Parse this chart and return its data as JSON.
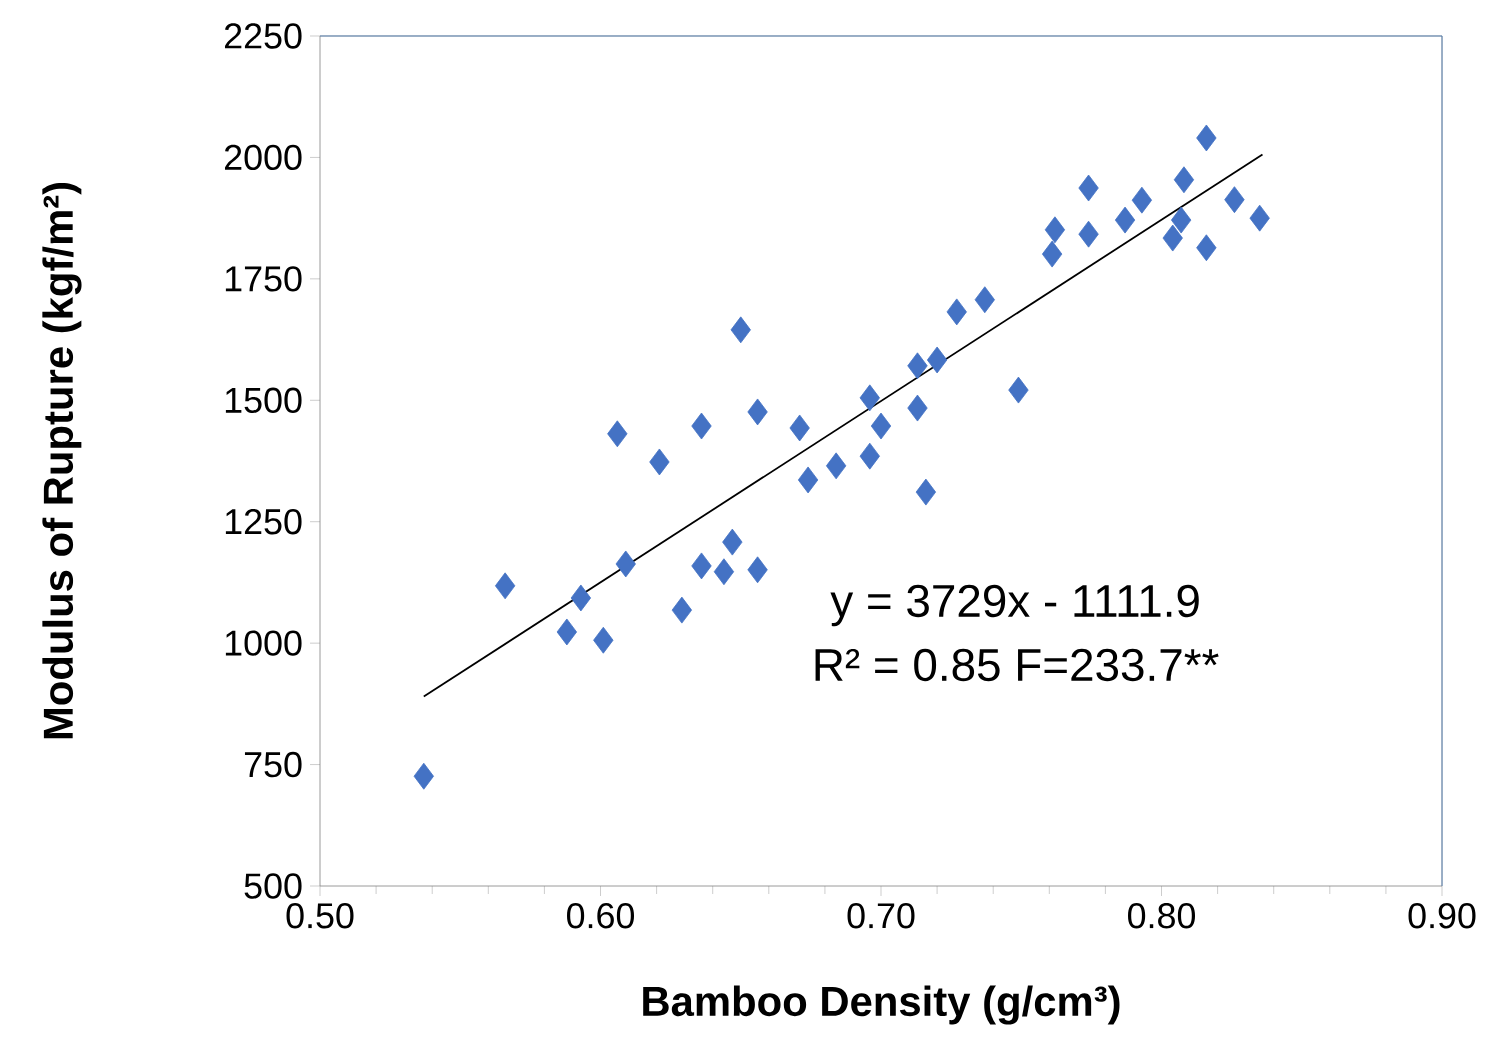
{
  "chart_data": {
    "type": "scatter",
    "xlabel": "Bamboo Density (g/cm³)",
    "ylabel": "Modulus of Rupture (kgf/m²)",
    "xlim": [
      0.5,
      0.9
    ],
    "ylim": [
      500,
      2250
    ],
    "xticks": [
      {
        "value": 0.5,
        "label": "0.50"
      },
      {
        "value": 0.6,
        "label": "0.60"
      },
      {
        "value": 0.7,
        "label": "0.70"
      },
      {
        "value": 0.8,
        "label": "0.80"
      },
      {
        "value": 0.9,
        "label": "0.90"
      }
    ],
    "yticks": [
      500,
      750,
      1000,
      1250,
      1500,
      1750,
      2000,
      2250
    ],
    "marker": "diamond",
    "grid": false,
    "annotations": [
      "y = 3729x - 1111.9",
      "R² = 0.85 F=233.7**"
    ],
    "series": [
      {
        "color": "#4472c4",
        "x": [
          0.537,
          0.566,
          0.588,
          0.593,
          0.601,
          0.609,
          0.606,
          0.621,
          0.629,
          0.636,
          0.644,
          0.647,
          0.656,
          0.636,
          0.65,
          0.656,
          0.671,
          0.674,
          0.684,
          0.696,
          0.7,
          0.696,
          0.713,
          0.72,
          0.713,
          0.716,
          0.727,
          0.737,
          0.749,
          0.761,
          0.762,
          0.774,
          0.774,
          0.787,
          0.793,
          0.804,
          0.807,
          0.808,
          0.816,
          0.816,
          0.826,
          0.835
        ],
        "values": [
          726,
          1118,
          1023,
          1093,
          1006,
          1163,
          1431,
          1373,
          1068,
          1159,
          1147,
          1208,
          1151,
          1447,
          1645,
          1476,
          1443,
          1336,
          1365,
          1505,
          1447,
          1385,
          1571,
          1583,
          1484,
          1311,
          1682,
          1707,
          1521,
          1801,
          1851,
          1842,
          1937,
          1871,
          1912,
          1834,
          1871,
          1954,
          2040,
          1814,
          1913,
          1875
        ]
      },
      {
        "type": "line",
        "color": "#000000",
        "marker": "none",
        "x": [
          0.537,
          0.836
        ],
        "values": [
          890,
          2006
        ]
      }
    ]
  }
}
